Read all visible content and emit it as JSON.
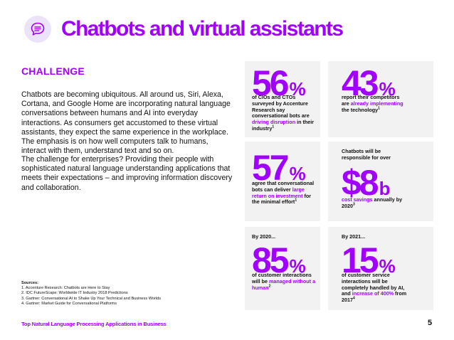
{
  "page_title": "Chatbots and virtual assistants",
  "challenge_heading": "CHALLENGE",
  "paragraph1": "Chatbots are becoming ubiquitous. All around us, Siri, Alexa, Cortana, and Google Home are incorporating natural language conversations between humans and AI into everyday interactions. As consumers get accustomed to these virtual assistants, they expect the same experience in the workplace. The emphasis is on how well computers talk to humans, interact with them, understand text and so on.",
  "paragraph2": "The challenge for enterprises? Providing their people with sophisticated natural language understanding applications that meets their expectations – and improving information discovery and collaboration.",
  "sources": {
    "title": "Sources:",
    "items": [
      "1. Accenture Research: Chatbots are Here to Stay",
      "2. IDC FutureScape: Worldwide IT Industry 2018 Predictions",
      "3. Gartner: Conversational AI to Shake Up Your Technical and Business Worlds",
      "4. Gartner: Market Guide for Conversational Platforms"
    ]
  },
  "footer": "Top Natural Language Processing Applications in Business",
  "page_number": "5",
  "stats": {
    "s1": {
      "value": "56",
      "unit": "%",
      "pre": "",
      "text_a": "of CIOs and CTOs surveyed by Accenture Research say conversational bots are ",
      "highlight": "driving disruption",
      "text_b": " in their industry",
      "ref": "1"
    },
    "s2": {
      "value": "43",
      "unit": "%",
      "pre": "",
      "text_a": "report their competitors are ",
      "highlight": "already implementing",
      "text_b": " the technology",
      "ref": "1"
    },
    "s3": {
      "value": "57",
      "unit": "%",
      "pre": "",
      "text_a": "agree that conversational bots can deliver ",
      "highlight": "large return on investment",
      "text_b": " for the minimal effort",
      "ref": "1"
    },
    "s4": {
      "value": "$8",
      "unit": "b",
      "pre": "Chatbots will be responsible for over",
      "text_a": "",
      "highlight": "cost savings",
      "text_b": " annually by 2020",
      "ref": "3"
    },
    "s5": {
      "value": "85",
      "unit": "%",
      "pre": "By 2020...",
      "text_a": "of customer interactions will be ",
      "highlight": "managed without a human",
      "text_b": "",
      "ref": "2"
    },
    "s6": {
      "value": "15",
      "unit": "%",
      "pre": "By 2021...",
      "text_a": "of customer service interactions will be completely handled by AI, and ",
      "highlight": "increase of 400%",
      "text_b": " from 2017",
      "ref": "4"
    }
  },
  "colors": {
    "accent": "#a100ff",
    "card_bg": "#f2f2f2",
    "icon_bg": "#ece3fb"
  }
}
